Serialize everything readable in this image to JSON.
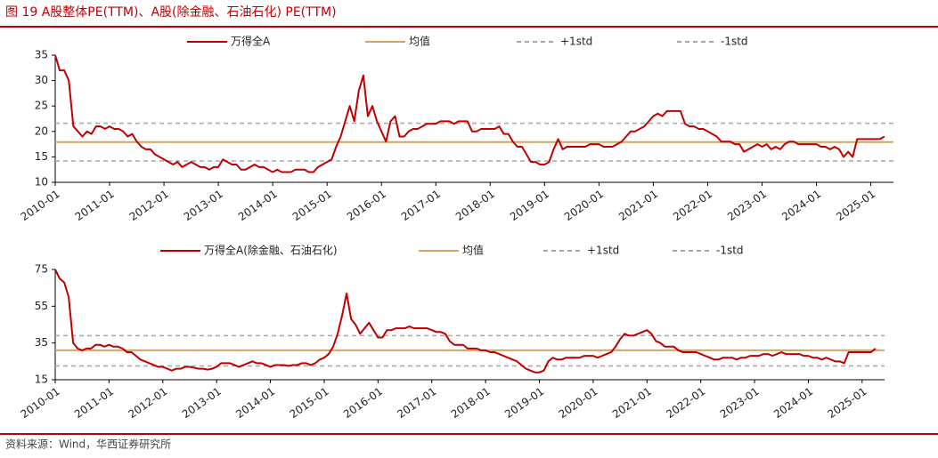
{
  "title": "图 19 A股整体PE(TTM)、A股(除金融、石油石化) PE(TTM)",
  "source": "资料来源：Wind，华西证券研究所",
  "chart_data": [
    {
      "type": "line",
      "x": [
        "2010-01",
        "2010-02",
        "2010-03",
        "2010-04",
        "2010-05",
        "2010-06",
        "2010-07",
        "2010-08",
        "2010-09",
        "2010-10",
        "2010-11",
        "2010-12",
        "2011-01",
        "2011-02",
        "2011-03",
        "2011-04",
        "2011-05",
        "2011-06",
        "2011-07",
        "2011-08",
        "2011-09",
        "2011-10",
        "2011-11",
        "2011-12",
        "2012-01",
        "2012-02",
        "2012-03",
        "2012-04",
        "2012-05",
        "2012-06",
        "2012-07",
        "2012-08",
        "2012-09",
        "2012-10",
        "2012-11",
        "2012-12",
        "2013-01",
        "2013-02",
        "2013-03",
        "2013-04",
        "2013-05",
        "2013-06",
        "2013-07",
        "2013-08",
        "2013-09",
        "2013-10",
        "2013-11",
        "2013-12",
        "2014-01",
        "2014-02",
        "2014-03",
        "2014-04",
        "2014-05",
        "2014-06",
        "2014-07",
        "2014-08",
        "2014-09",
        "2014-10",
        "2014-11",
        "2014-12",
        "2015-01",
        "2015-02",
        "2015-03",
        "2015-04",
        "2015-05",
        "2015-06",
        "2015-07",
        "2015-08",
        "2015-09",
        "2015-10",
        "2015-11",
        "2015-12",
        "2016-01",
        "2016-02",
        "2016-03",
        "2016-04",
        "2016-05",
        "2016-06",
        "2016-07",
        "2016-08",
        "2016-09",
        "2016-10",
        "2016-11",
        "2016-12",
        "2017-01",
        "2017-02",
        "2017-03",
        "2017-04",
        "2017-05",
        "2017-06",
        "2017-07",
        "2017-08",
        "2017-09",
        "2017-10",
        "2017-11",
        "2017-12",
        "2018-01",
        "2018-02",
        "2018-03",
        "2018-04",
        "2018-05",
        "2018-06",
        "2018-07",
        "2018-08",
        "2018-09",
        "2018-10",
        "2018-11",
        "2018-12",
        "2019-01",
        "2019-02",
        "2019-03",
        "2019-04",
        "2019-05",
        "2019-06",
        "2019-07",
        "2019-08",
        "2019-09",
        "2019-10",
        "2019-11",
        "2019-12",
        "2020-01",
        "2020-02",
        "2020-03",
        "2020-04",
        "2020-05",
        "2020-06",
        "2020-07",
        "2020-08",
        "2020-09",
        "2020-10",
        "2020-11",
        "2020-12",
        "2021-01",
        "2021-02",
        "2021-03",
        "2021-04",
        "2021-05",
        "2021-06",
        "2021-07",
        "2021-08",
        "2021-09",
        "2021-10",
        "2021-11",
        "2021-12",
        "2022-01",
        "2022-02",
        "2022-03",
        "2022-04",
        "2022-05",
        "2022-06",
        "2022-07",
        "2022-08",
        "2022-09",
        "2022-10",
        "2022-11",
        "2022-12",
        "2023-01",
        "2023-02",
        "2023-03",
        "2023-04",
        "2023-05",
        "2023-06",
        "2023-07",
        "2023-08",
        "2023-09",
        "2023-10",
        "2023-11",
        "2023-12",
        "2024-01",
        "2024-02",
        "2024-03",
        "2024-04",
        "2024-05",
        "2024-06",
        "2024-07",
        "2024-08",
        "2024-09",
        "2024-10",
        "2024-11",
        "2024-12",
        "2025-01",
        "2025-02",
        "2025-03",
        "2025-04"
      ],
      "series": [
        {
          "name": "万得全A",
          "color": "#c00000",
          "values": [
            35,
            32,
            32,
            30,
            21,
            20,
            19,
            20,
            19.5,
            21,
            21,
            20.5,
            21,
            20.5,
            20.5,
            20,
            19,
            19.5,
            18,
            17,
            16.5,
            16.5,
            15.5,
            15,
            14.5,
            14,
            13.5,
            14,
            13,
            13.5,
            14,
            13.5,
            13,
            13,
            12.5,
            13,
            13,
            14.5,
            14,
            13.5,
            13.5,
            12.5,
            12.5,
            13,
            13.5,
            13,
            13,
            12.5,
            12,
            12.5,
            12,
            12,
            12,
            12.5,
            12.5,
            12.5,
            12,
            12,
            13,
            13.5,
            14,
            14.5,
            17,
            19,
            22,
            25,
            22,
            28,
            31,
            23,
            25,
            22,
            20,
            18,
            22,
            23,
            19,
            19,
            20,
            20.5,
            20.5,
            21,
            21.5,
            21.5,
            21.5,
            22,
            22,
            22,
            21.5,
            22,
            22,
            22,
            20,
            20,
            20.5,
            20.5,
            20.5,
            20.5,
            21,
            19.5,
            19.5,
            18,
            17,
            17,
            15.5,
            14,
            14,
            13.5,
            13.5,
            14,
            16.5,
            18.5,
            16.5,
            17,
            17,
            17,
            17,
            17,
            17.5,
            17.5,
            17.5,
            17,
            17,
            17,
            17.5,
            18,
            19,
            20,
            20,
            20.5,
            21,
            22,
            23,
            23.5,
            23,
            24,
            24,
            24,
            24,
            21.5,
            21,
            21,
            20.5,
            20.5,
            20,
            19.5,
            19,
            18,
            18,
            18,
            17.5,
            17.5,
            16,
            16.5,
            17,
            17.5,
            17,
            17.5,
            16.5,
            17,
            16.5,
            17.5,
            18,
            18,
            17.5,
            17.5,
            17.5,
            17.5,
            17.5,
            17,
            17,
            16.5,
            17,
            16.5,
            15,
            16,
            15,
            18.5,
            18.5,
            18.5,
            18.5,
            18.5,
            18.5,
            19
          ]
        }
      ],
      "hlines": [
        {
          "name": "均值",
          "value": 17.9,
          "color": "#d6a461",
          "dashed": false
        },
        {
          "name": "+1std",
          "value": 21.6,
          "color": "#a6a6a6",
          "dashed": true
        },
        {
          "name": "-1std",
          "value": 14.2,
          "color": "#a6a6a6",
          "dashed": true
        }
      ],
      "xlim": [
        "2010-01",
        "2025-06"
      ],
      "xticks": [
        "2010-01",
        "2011-01",
        "2012-01",
        "2013-01",
        "2014-01",
        "2015-01",
        "2016-01",
        "2017-01",
        "2018-01",
        "2019-01",
        "2020-01",
        "2021-01",
        "2022-01",
        "2023-01",
        "2024-01",
        "2025-01"
      ],
      "ylim": [
        10,
        35
      ],
      "yticks": [
        10,
        15,
        20,
        25,
        30,
        35
      ]
    },
    {
      "type": "line",
      "x": [
        "2010-01",
        "2010-02",
        "2010-03",
        "2010-04",
        "2010-05",
        "2010-06",
        "2010-07",
        "2010-08",
        "2010-09",
        "2010-10",
        "2010-11",
        "2010-12",
        "2011-01",
        "2011-02",
        "2011-03",
        "2011-04",
        "2011-05",
        "2011-06",
        "2011-07",
        "2011-08",
        "2011-09",
        "2011-10",
        "2011-11",
        "2011-12",
        "2012-01",
        "2012-02",
        "2012-03",
        "2012-04",
        "2012-05",
        "2012-06",
        "2012-07",
        "2012-08",
        "2012-09",
        "2012-10",
        "2012-11",
        "2012-12",
        "2013-01",
        "2013-02",
        "2013-03",
        "2013-04",
        "2013-05",
        "2013-06",
        "2013-07",
        "2013-08",
        "2013-09",
        "2013-10",
        "2013-11",
        "2013-12",
        "2014-01",
        "2014-02",
        "2014-03",
        "2014-04",
        "2014-05",
        "2014-06",
        "2014-07",
        "2014-08",
        "2014-09",
        "2014-10",
        "2014-11",
        "2014-12",
        "2015-01",
        "2015-02",
        "2015-03",
        "2015-04",
        "2015-05",
        "2015-06",
        "2015-07",
        "2015-08",
        "2015-09",
        "2015-10",
        "2015-11",
        "2015-12",
        "2016-01",
        "2016-02",
        "2016-03",
        "2016-04",
        "2016-05",
        "2016-06",
        "2016-07",
        "2016-08",
        "2016-09",
        "2016-10",
        "2016-11",
        "2016-12",
        "2017-01",
        "2017-02",
        "2017-03",
        "2017-04",
        "2017-05",
        "2017-06",
        "2017-07",
        "2017-08",
        "2017-09",
        "2017-10",
        "2017-11",
        "2017-12",
        "2018-01",
        "2018-02",
        "2018-03",
        "2018-04",
        "2018-05",
        "2018-06",
        "2018-07",
        "2018-08",
        "2018-09",
        "2018-10",
        "2018-11",
        "2018-12",
        "2019-01",
        "2019-02",
        "2019-03",
        "2019-04",
        "2019-05",
        "2019-06",
        "2019-07",
        "2019-08",
        "2019-09",
        "2019-10",
        "2019-11",
        "2019-12",
        "2020-01",
        "2020-02",
        "2020-03",
        "2020-04",
        "2020-05",
        "2020-06",
        "2020-07",
        "2020-08",
        "2020-09",
        "2020-10",
        "2020-11",
        "2020-12",
        "2021-01",
        "2021-02",
        "2021-03",
        "2021-04",
        "2021-05",
        "2021-06",
        "2021-07",
        "2021-08",
        "2021-09",
        "2021-10",
        "2021-11",
        "2021-12",
        "2022-01",
        "2022-02",
        "2022-03",
        "2022-04",
        "2022-05",
        "2022-06",
        "2022-07",
        "2022-08",
        "2022-09",
        "2022-10",
        "2022-11",
        "2022-12",
        "2023-01",
        "2023-02",
        "2023-03",
        "2023-04",
        "2023-05",
        "2023-06",
        "2023-07",
        "2023-08",
        "2023-09",
        "2023-10",
        "2023-11",
        "2023-12",
        "2024-01",
        "2024-02",
        "2024-03",
        "2024-04",
        "2024-05",
        "2024-06",
        "2024-07",
        "2024-08",
        "2024-09",
        "2024-10",
        "2024-11",
        "2024-12",
        "2025-01",
        "2025-02",
        "2025-03",
        "2025-04"
      ],
      "series": [
        {
          "name": "万得全A(除金融、石油石化)",
          "color": "#c00000",
          "values": [
            75,
            70,
            68,
            60,
            35,
            32,
            31,
            32,
            32,
            34,
            34,
            33,
            34,
            33,
            33,
            32,
            30,
            30,
            28,
            26,
            25,
            24,
            23,
            22,
            22,
            21,
            20,
            21,
            21,
            22,
            22,
            21.5,
            21,
            21,
            20.5,
            21,
            22,
            24,
            24,
            24,
            23,
            22,
            23,
            24,
            25,
            24,
            24,
            23,
            22,
            23,
            23,
            23,
            22.5,
            23,
            23,
            24,
            24,
            23,
            24,
            26,
            27,
            29,
            33,
            40,
            50,
            62,
            48,
            45,
            40,
            43,
            46,
            42,
            38,
            38,
            42,
            42,
            43,
            43,
            43,
            44,
            43,
            43,
            43,
            43,
            42,
            41,
            41,
            40,
            36,
            34,
            34,
            34,
            32,
            32,
            32,
            31,
            31,
            30,
            30,
            29,
            28,
            27,
            26,
            25,
            23,
            21,
            20,
            19,
            19,
            20,
            25,
            27,
            26,
            26,
            27,
            27,
            27,
            27,
            28,
            28,
            28,
            27,
            28,
            29,
            30,
            33,
            37,
            40,
            39,
            39,
            40,
            41,
            42,
            40,
            36,
            35,
            33,
            33,
            33,
            31,
            30,
            30,
            30,
            30,
            29,
            28,
            27,
            26,
            26,
            27,
            27,
            27,
            26,
            27,
            27,
            28,
            28,
            28,
            29,
            29,
            28,
            29,
            30,
            29,
            29,
            29,
            29,
            28,
            28,
            27,
            27,
            26,
            27,
            26,
            25,
            25,
            24,
            30,
            30,
            30,
            30,
            30,
            30,
            32
          ]
        }
      ],
      "hlines": [
        {
          "name": "均值",
          "value": 31,
          "color": "#d6a461",
          "dashed": false
        },
        {
          "name": "+1std",
          "value": 39,
          "color": "#a6a6a6",
          "dashed": true
        },
        {
          "name": "-1std",
          "value": 22.5,
          "color": "#a6a6a6",
          "dashed": true
        }
      ],
      "xlim": [
        "2010-01",
        "2025-06"
      ],
      "xticks": [
        "2010-01",
        "2011-01",
        "2012-01",
        "2013-01",
        "2014-01",
        "2015-01",
        "2016-01",
        "2017-01",
        "2018-01",
        "2019-01",
        "2020-01",
        "2021-01",
        "2022-01",
        "2023-01",
        "2024-01",
        "2025-01"
      ],
      "ylim": [
        15,
        75
      ],
      "yticks": [
        15,
        35,
        55,
        75
      ]
    }
  ]
}
